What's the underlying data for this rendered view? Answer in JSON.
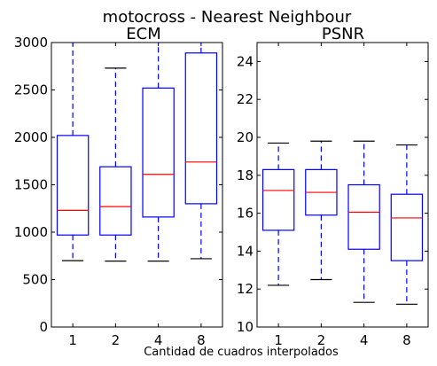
{
  "figure": {
    "suptitle": "motocross - Nearest Neighbour",
    "xlabel": "Cantidad de cuadros interpolados"
  },
  "chart_data": [
    {
      "type": "box",
      "title": "ECM",
      "categories": [
        "1",
        "2",
        "4",
        "8"
      ],
      "ylim": [
        0,
        3000
      ],
      "yticks": [
        0,
        500,
        1000,
        1500,
        2000,
        2500,
        3000
      ],
      "boxes": [
        {
          "whisker_low": 700,
          "q1": 970,
          "median": 1230,
          "q3": 2020,
          "whisker_high": 3000
        },
        {
          "whisker_low": 695,
          "q1": 970,
          "median": 1270,
          "q3": 1690,
          "whisker_high": 2730
        },
        {
          "whisker_low": 695,
          "q1": 1160,
          "median": 1610,
          "q3": 2520,
          "whisker_high": 3000
        },
        {
          "whisker_low": 720,
          "q1": 1300,
          "median": 1740,
          "q3": 2890,
          "whisker_high": 3000
        }
      ],
      "colors": {
        "box": "#0000ff",
        "median": "#ff0000",
        "cap": "#000000"
      }
    },
    {
      "type": "box",
      "title": "PSNR",
      "categories": [
        "1",
        "2",
        "4",
        "8"
      ],
      "ylim": [
        10,
        25
      ],
      "yticks": [
        10,
        12,
        14,
        16,
        18,
        20,
        22,
        24
      ],
      "boxes": [
        {
          "whisker_low": 12.2,
          "q1": 15.1,
          "median": 17.2,
          "q3": 18.3,
          "whisker_high": 19.7
        },
        {
          "whisker_low": 12.5,
          "q1": 15.9,
          "median": 17.1,
          "q3": 18.3,
          "whisker_high": 19.8
        },
        {
          "whisker_low": 11.3,
          "q1": 14.1,
          "median": 16.05,
          "q3": 17.5,
          "whisker_high": 19.8
        },
        {
          "whisker_low": 11.2,
          "q1": 13.5,
          "median": 15.75,
          "q3": 17.0,
          "whisker_high": 19.6
        }
      ],
      "colors": {
        "box": "#0000ff",
        "median": "#ff0000",
        "cap": "#000000"
      }
    }
  ]
}
